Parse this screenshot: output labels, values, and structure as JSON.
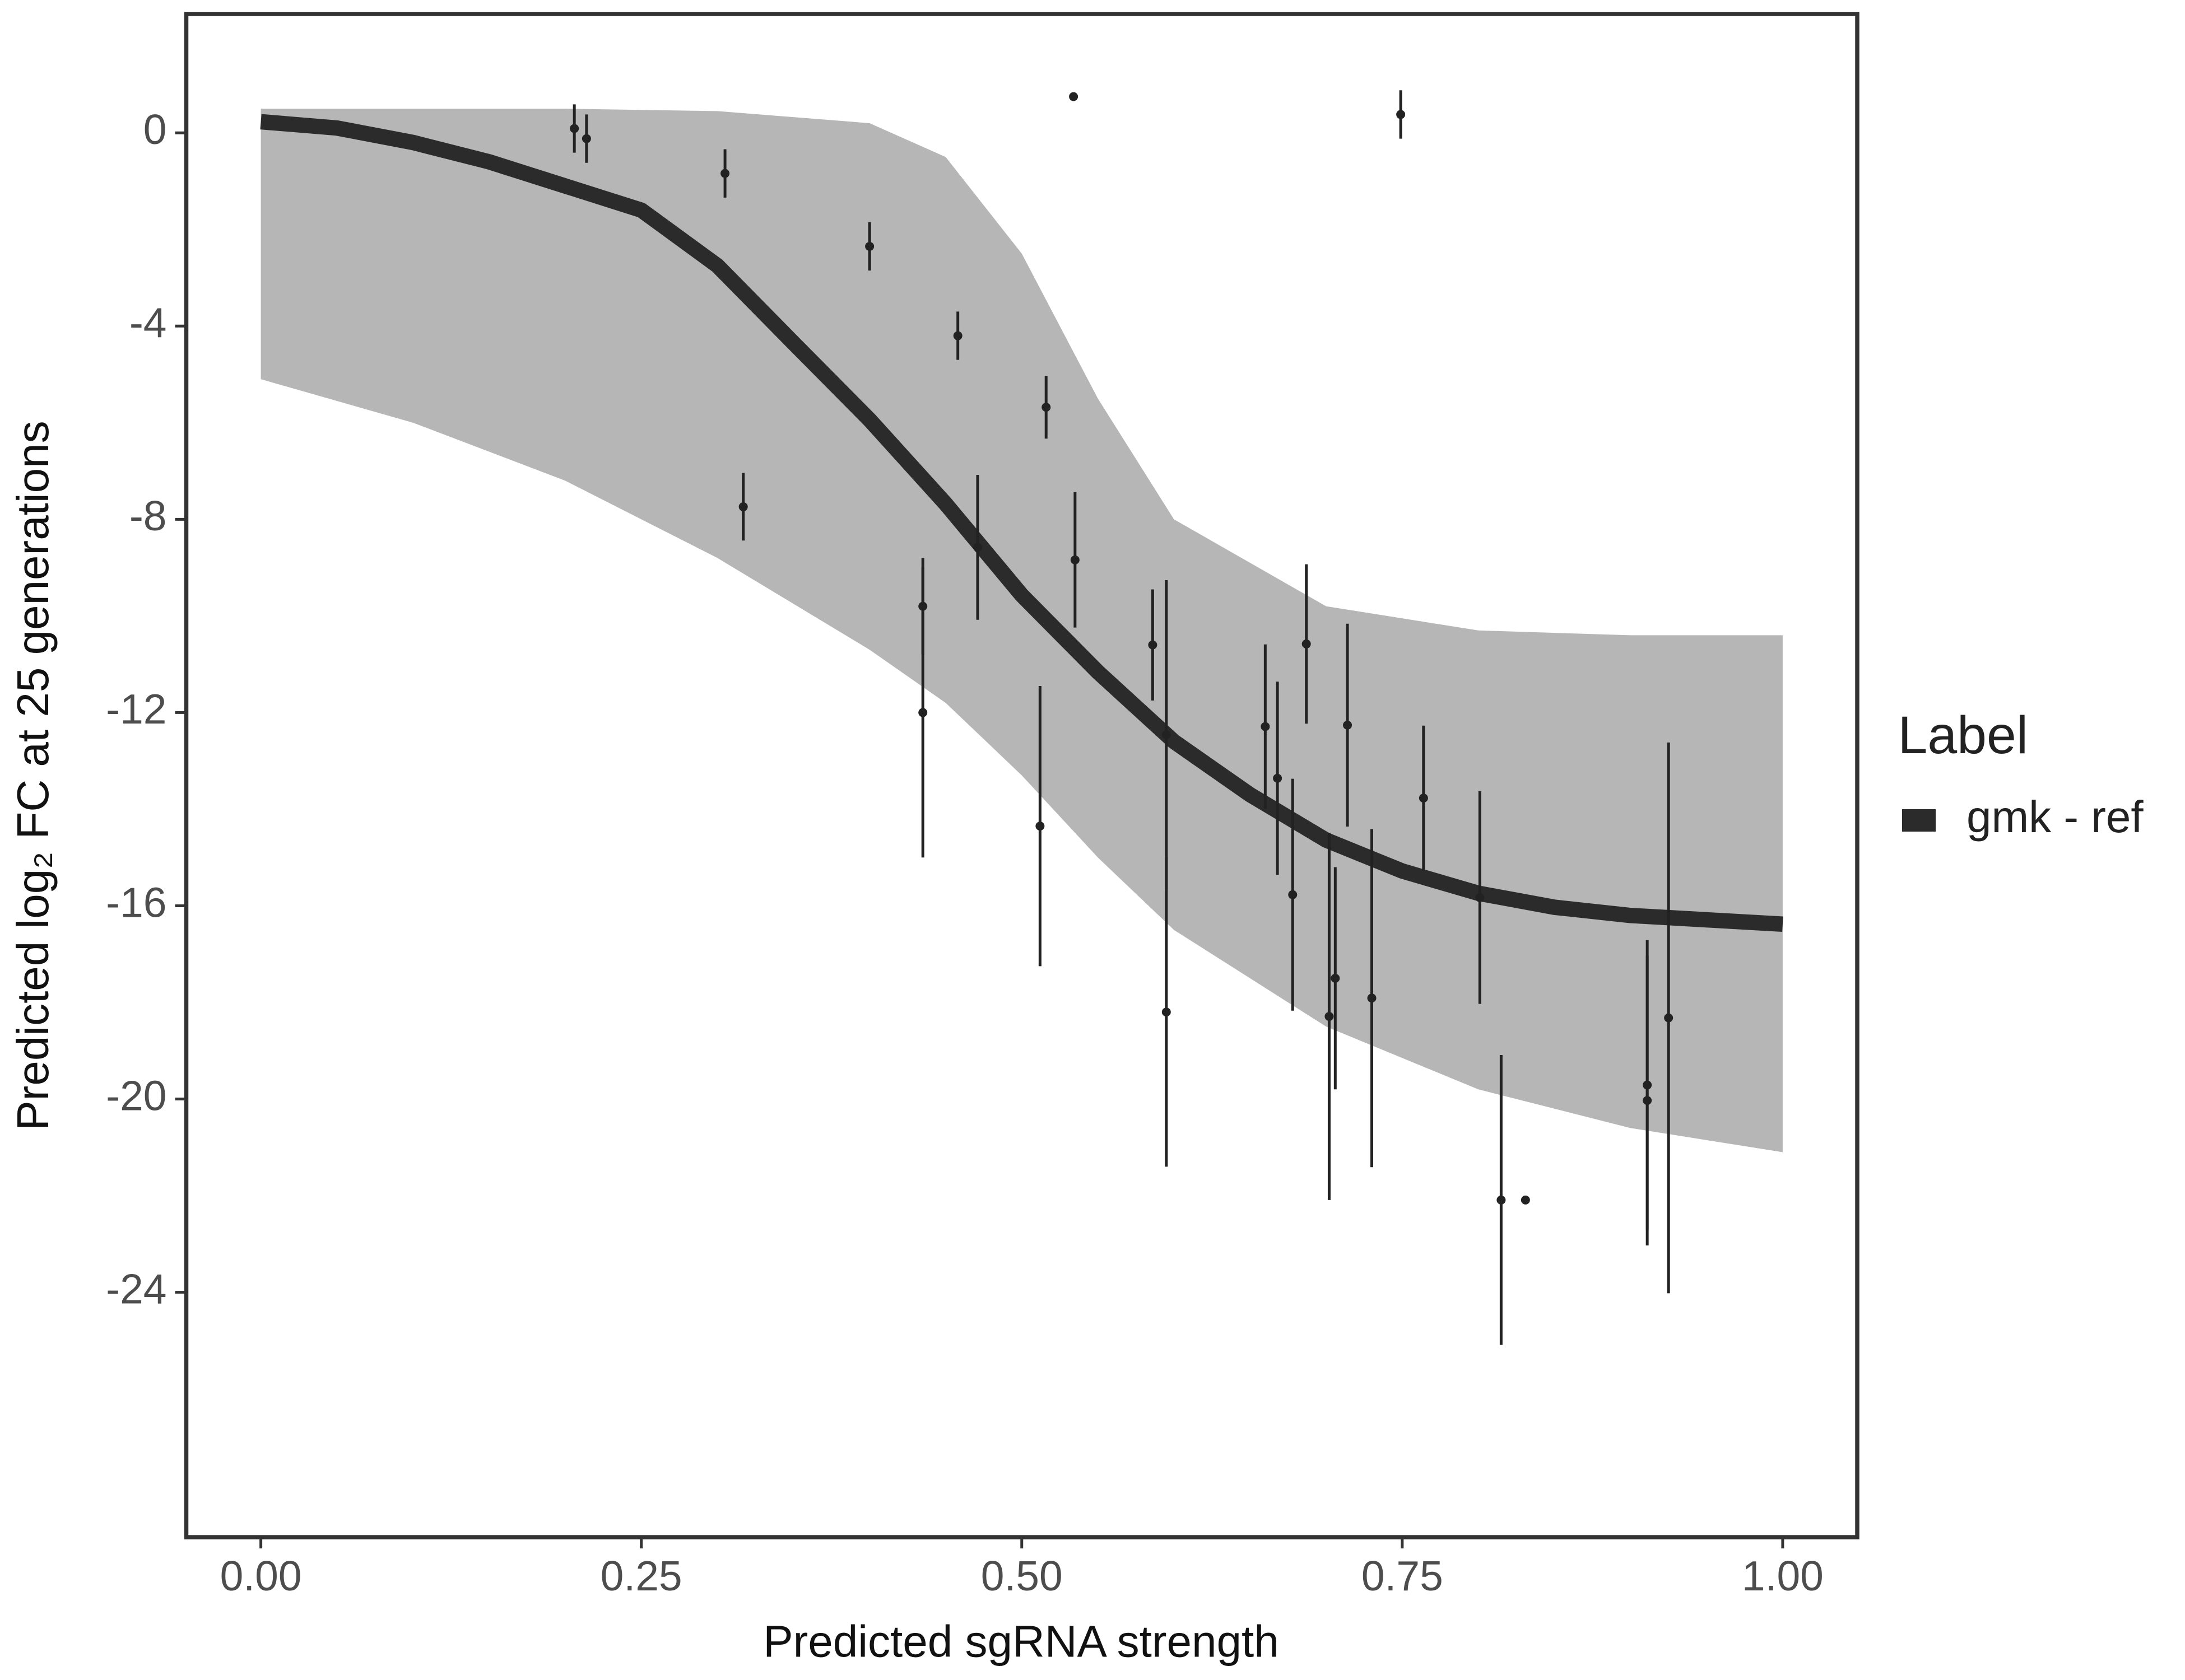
{
  "chart_data": {
    "type": "scatter",
    "xlabel": "Predicted sgRNA strength",
    "ylabel": "Predicted log₂ FC at 25 generations",
    "legend_title": "Label",
    "legend": "right",
    "xlim": [
      -0.049,
      1.049
    ],
    "ylim": [
      -29.07,
      2.46
    ],
    "xticks": [
      {
        "value": 0,
        "label": "0.00"
      },
      {
        "value": 0.25,
        "label": "0.25"
      },
      {
        "value": 0.5,
        "label": "0.50"
      },
      {
        "value": 0.75,
        "label": "0.75"
      },
      {
        "value": 1,
        "label": "1.00"
      }
    ],
    "yticks": [
      0,
      -4,
      -8,
      -12,
      -16,
      -20,
      -24
    ],
    "band": {
      "color": "#a9a9a9",
      "x": [
        0,
        0.1,
        0.2,
        0.3,
        0.4,
        0.45,
        0.5,
        0.55,
        0.6,
        0.7,
        0.8,
        0.9,
        1
      ],
      "upper": [
        0.5,
        0.5,
        0.5,
        0.45,
        0.2,
        -0.5,
        -2.5,
        -5.5,
        -8.0,
        -9.8,
        -10.3,
        -10.4,
        -10.4
      ],
      "lower": [
        -5.1,
        -6.0,
        -7.2,
        -8.8,
        -10.7,
        -11.8,
        -13.3,
        -15.0,
        -16.5,
        -18.5,
        -19.8,
        -20.6,
        -21.1
      ]
    },
    "series": [
      {
        "name": "gmk - ref",
        "color": "#2b2b2b",
        "x": [
          0,
          0.05,
          0.1,
          0.15,
          0.2,
          0.25,
          0.3,
          0.35,
          0.4,
          0.45,
          0.5,
          0.55,
          0.6,
          0.65,
          0.7,
          0.75,
          0.8,
          0.85,
          0.9,
          0.95,
          1
        ],
        "values": [
          0.23,
          0.1,
          -0.2,
          -0.6,
          -1.1,
          -1.6,
          -2.75,
          -4.35,
          -5.94,
          -7.68,
          -9.57,
          -11.16,
          -12.6,
          -13.7,
          -14.64,
          -15.28,
          -15.74,
          -16.03,
          -16.2,
          -16.29,
          -16.38
        ]
      }
    ],
    "points": {
      "color": "#222222",
      "x": [
        0.206,
        0.214,
        0.305,
        0.4,
        0.317,
        0.458,
        0.516,
        0.534,
        0.435,
        0.435,
        0.471,
        0.535,
        0.512,
        0.586,
        0.595,
        0.595,
        0.66,
        0.668,
        0.678,
        0.687,
        0.702,
        0.706,
        0.714,
        0.73,
        0.749,
        0.764,
        0.801,
        0.815,
        0.831,
        0.911,
        0.911,
        0.925
      ],
      "values": [
        0.09,
        -0.12,
        -0.84,
        -2.35,
        -7.74,
        -4.2,
        -5.68,
        0.75,
        -9.8,
        -12.0,
        -8.58,
        -8.84,
        -14.35,
        -10.6,
        -12.46,
        -18.2,
        -12.29,
        -13.36,
        -15.77,
        -10.58,
        -18.29,
        -17.5,
        -12.26,
        -17.91,
        0.38,
        -13.77,
        -15.83,
        -22.09,
        -22.09,
        -19.71,
        -20.03,
        -18.32
      ],
      "errors": [
        0.5,
        0.5,
        0.5,
        0.5,
        0.7,
        0.5,
        0.65,
        null,
        1.0,
        3.0,
        1.5,
        1.4,
        2.9,
        1.15,
        3.2,
        3.2,
        1.7,
        2.0,
        2.4,
        1.65,
        3.8,
        2.3,
        2.1,
        3.5,
        0.5,
        1.5,
        2.2,
        3.0,
        null,
        3.0,
        3.0,
        5.7
      ]
    }
  }
}
